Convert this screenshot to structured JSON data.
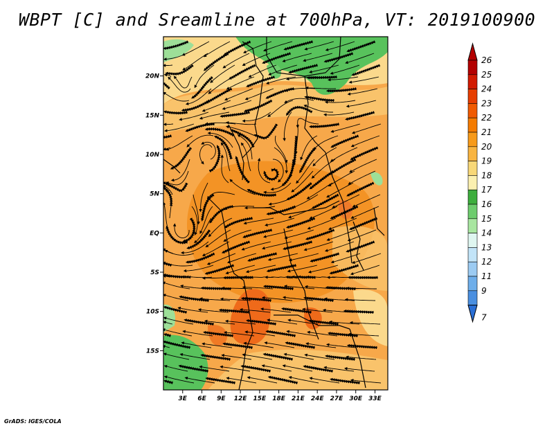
{
  "title": "WBPT [C] and Sreamline at 700hPa, VT: 2019100900",
  "footer": "GrADS: IGES/COLA",
  "map": {
    "lon_range": [
      0,
      35
    ],
    "lat_range": [
      -20,
      25
    ],
    "lat_ticks": [
      {
        "value": 20,
        "label": "20N"
      },
      {
        "value": 15,
        "label": "15N"
      },
      {
        "value": 10,
        "label": "10N"
      },
      {
        "value": 5,
        "label": "5N"
      },
      {
        "value": 0,
        "label": "EQ"
      },
      {
        "value": -5,
        "label": "5S"
      },
      {
        "value": -10,
        "label": "10S"
      },
      {
        "value": -15,
        "label": "15S"
      }
    ],
    "lon_ticks": [
      {
        "value": 3,
        "label": "3E"
      },
      {
        "value": 6,
        "label": "6E"
      },
      {
        "value": 9,
        "label": "9E"
      },
      {
        "value": 12,
        "label": "12E"
      },
      {
        "value": 15,
        "label": "15E"
      },
      {
        "value": 18,
        "label": "18E"
      },
      {
        "value": 21,
        "label": "21E"
      },
      {
        "value": 24,
        "label": "24E"
      },
      {
        "value": 27,
        "label": "27E"
      },
      {
        "value": 30,
        "label": "30E"
      },
      {
        "value": 33,
        "label": "33E"
      }
    ]
  },
  "colorbar": {
    "labels": [
      "26",
      "25",
      "24",
      "23",
      "22",
      "21",
      "20",
      "19",
      "18",
      "17",
      "16",
      "15",
      "14",
      "13",
      "12",
      "11",
      "9",
      "7"
    ],
    "colors": [
      "#b30000",
      "#d21a00",
      "#e63d00",
      "#f05a00",
      "#f47b00",
      "#f79a1a",
      "#f8b440",
      "#f8d878",
      "#fbf0b0",
      "#3dae3d",
      "#6dcc6d",
      "#a8e6a0",
      "#dff6f0",
      "#c2e4f8",
      "#9ccbf2",
      "#6eaeea",
      "#4a8fe0",
      "#2a6fd6"
    ]
  }
}
